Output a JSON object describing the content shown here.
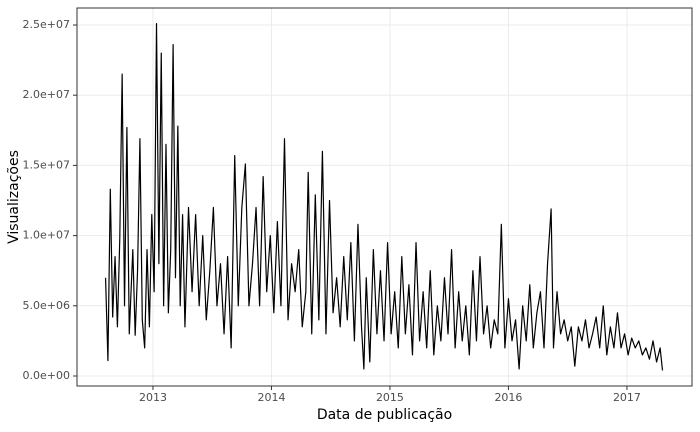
{
  "chart_data": {
    "type": "line",
    "x_label": "Data de publicação",
    "y_label": "Visualizações",
    "color": "#000000",
    "grid": true,
    "xlim": [
      2012.359,
      2017.549
    ],
    "ylim": [
      -712000,
      26210000
    ],
    "xticks": [
      2013,
      2014,
      2015,
      2016,
      2017
    ],
    "yticks": [
      {
        "value": 0,
        "label": "0.0e+00"
      },
      {
        "value": 5000000,
        "label": "5.0e+06"
      },
      {
        "value": 10000000,
        "label": "1.0e+07"
      },
      {
        "value": 15000000,
        "label": "1.5e+07"
      },
      {
        "value": 20000000,
        "label": "2.0e+07"
      },
      {
        "value": 25000000,
        "label": "2.5e+07"
      }
    ],
    "x": [
      2012.6,
      2012.62,
      2012.64,
      2012.66,
      2012.68,
      2012.7,
      2012.72,
      2012.74,
      2012.76,
      2012.78,
      2012.8,
      2012.83,
      2012.85,
      2012.87,
      2012.89,
      2012.91,
      2012.93,
      2012.95,
      2012.97,
      2012.99,
      2013.01,
      2013.03,
      2013.05,
      2013.07,
      2013.09,
      2013.11,
      2013.13,
      2013.15,
      2013.17,
      2013.19,
      2013.21,
      2013.23,
      2013.25,
      2013.27,
      2013.3,
      2013.33,
      2013.36,
      2013.39,
      2013.42,
      2013.45,
      2013.48,
      2013.51,
      2013.54,
      2013.57,
      2013.6,
      2013.63,
      2013.66,
      2013.69,
      2013.72,
      2013.75,
      2013.78,
      2013.81,
      2013.84,
      2013.87,
      2013.9,
      2013.93,
      2013.96,
      2013.99,
      2014.02,
      2014.05,
      2014.08,
      2014.11,
      2014.14,
      2014.17,
      2014.2,
      2014.23,
      2014.26,
      2014.29,
      2014.31,
      2014.34,
      2014.37,
      2014.4,
      2014.43,
      2014.46,
      2014.49,
      2014.52,
      2014.55,
      2014.58,
      2014.61,
      2014.64,
      2014.67,
      2014.7,
      2014.73,
      2014.76,
      2014.78,
      2014.8,
      2014.83,
      2014.86,
      2014.89,
      2014.92,
      2014.95,
      2014.98,
      2015.01,
      2015.04,
      2015.07,
      2015.1,
      2015.13,
      2015.16,
      2015.19,
      2015.22,
      2015.25,
      2015.28,
      2015.31,
      2015.34,
      2015.37,
      2015.4,
      2015.43,
      2015.46,
      2015.49,
      2015.52,
      2015.55,
      2015.58,
      2015.61,
      2015.64,
      2015.67,
      2015.7,
      2015.73,
      2015.76,
      2015.79,
      2015.82,
      2015.85,
      2015.88,
      2015.91,
      2015.94,
      2015.97,
      2016.0,
      2016.03,
      2016.06,
      2016.09,
      2016.12,
      2016.15,
      2016.18,
      2016.21,
      2016.24,
      2016.27,
      2016.3,
      2016.33,
      2016.36,
      2016.38,
      2016.41,
      2016.44,
      2016.47,
      2016.5,
      2016.53,
      2016.56,
      2016.59,
      2016.62,
      2016.65,
      2016.68,
      2016.71,
      2016.74,
      2016.77,
      2016.8,
      2016.83,
      2016.86,
      2016.89,
      2016.92,
      2016.95,
      2016.98,
      2017.01,
      2017.04,
      2017.07,
      2017.1,
      2017.13,
      2017.16,
      2017.19,
      2017.22,
      2017.25,
      2017.28,
      2017.3
    ],
    "values": [
      7000000,
      1100000,
      13300000,
      4200000,
      8500000,
      3500000,
      9800000,
      21500000,
      5000000,
      17700000,
      3000000,
      9000000,
      2900000,
      7500000,
      16900000,
      4000000,
      2000000,
      9000000,
      3500000,
      11500000,
      6000000,
      25100000,
      8000000,
      23000000,
      5000000,
      16500000,
      4500000,
      9000000,
      23600000,
      7000000,
      17800000,
      5000000,
      11500000,
      3500000,
      12000000,
      6000000,
      11500000,
      5000000,
      10000000,
      4000000,
      7500000,
      12000000,
      5000000,
      8000000,
      3000000,
      8500000,
      2000000,
      15700000,
      5000000,
      12000000,
      15100000,
      5000000,
      8000000,
      12000000,
      5000000,
      14200000,
      6000000,
      10000000,
      4500000,
      11000000,
      5000000,
      16900000,
      4000000,
      8000000,
      6000000,
      9000000,
      3500000,
      6000000,
      14500000,
      3000000,
      12900000,
      4000000,
      16000000,
      3000000,
      12500000,
      4500000,
      7000000,
      3500000,
      8500000,
      4000000,
      9500000,
      2500000,
      10800000,
      3500000,
      500000,
      7000000,
      1000000,
      9000000,
      3000000,
      7500000,
      2500000,
      9500000,
      3000000,
      6000000,
      2000000,
      8500000,
      3000000,
      6500000,
      1500000,
      9500000,
      2500000,
      6000000,
      2000000,
      7500000,
      1500000,
      5000000,
      2500000,
      7000000,
      3000000,
      9000000,
      2000000,
      6000000,
      2500000,
      5000000,
      1500000,
      7500000,
      2500000,
      8500000,
      3000000,
      5000000,
      2000000,
      4000000,
      3000000,
      10800000,
      2000000,
      5500000,
      2500000,
      4000000,
      500000,
      5000000,
      2500000,
      6500000,
      2000000,
      4500000,
      6000000,
      2000000,
      8000000,
      11900000,
      2000000,
      6000000,
      3000000,
      4000000,
      2500000,
      3500000,
      700000,
      3500000,
      2500000,
      4000000,
      2000000,
      3000000,
      4200000,
      2000000,
      5000000,
      1500000,
      3500000,
      2000000,
      4500000,
      2000000,
      3000000,
      1500000,
      2700000,
      2000000,
      2500000,
      1500000,
      2000000,
      1200000,
      2500000,
      1000000,
      2000000,
      400000
    ]
  }
}
